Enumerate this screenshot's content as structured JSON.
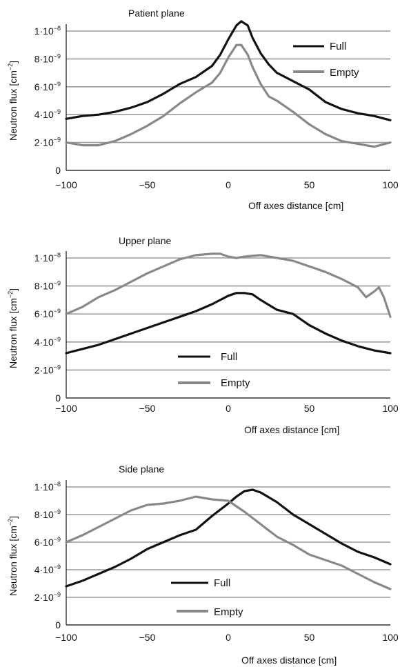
{
  "charts": [
    {
      "type": "line",
      "title": "Patient plane",
      "xlabel": "Off axes distance [cm]",
      "ylabel": "Neutron flux [cm",
      "ylabel_exp": "−2",
      "ylabel_close": "]",
      "xlim": [
        -100,
        100
      ],
      "ylim": [
        0,
        1.05e-08
      ],
      "x_ticks": [
        "−100",
        "−50",
        "0",
        "50",
        "100"
      ],
      "y_ticks": [
        {
          "mant": "0",
          "exp": ""
        },
        {
          "mant": "2·10",
          "exp": "−9"
        },
        {
          "mant": "4·10",
          "exp": "−9"
        },
        {
          "mant": "6·10",
          "exp": "−9"
        },
        {
          "mant": "8·10",
          "exp": "−9"
        },
        {
          "mant": "1·10",
          "exp": "−8"
        }
      ],
      "grid": true,
      "legend_position": "top-right",
      "series": [
        {
          "name": "Full",
          "color": "#111111",
          "x": [
            -100,
            -90,
            -80,
            -70,
            -60,
            -50,
            -40,
            -30,
            -20,
            -10,
            -5,
            0,
            5,
            8,
            12,
            15,
            20,
            25,
            30,
            40,
            50,
            60,
            70,
            80,
            90,
            100
          ],
          "y": [
            3.7e-09,
            3.9e-09,
            4e-09,
            4.2e-09,
            4.5e-09,
            4.9e-09,
            5.5e-09,
            6.2e-09,
            6.7e-09,
            7.5e-09,
            8.3e-09,
            9.4e-09,
            1.04e-08,
            1.07e-08,
            1.04e-08,
            9.5e-09,
            8.4e-09,
            7.6e-09,
            7e-09,
            6.4e-09,
            5.8e-09,
            4.9e-09,
            4.4e-09,
            4.1e-09,
            3.9e-09,
            3.6e-09
          ]
        },
        {
          "name": "Empty",
          "color": "#888888",
          "x": [
            -100,
            -90,
            -80,
            -70,
            -60,
            -50,
            -40,
            -30,
            -20,
            -10,
            -5,
            0,
            5,
            8,
            12,
            15,
            20,
            25,
            30,
            40,
            50,
            60,
            70,
            80,
            90,
            100
          ],
          "y": [
            2e-09,
            1.8e-09,
            1.8e-09,
            2.1e-09,
            2.6e-09,
            3.2e-09,
            3.9e-09,
            4.8e-09,
            5.6e-09,
            6.3e-09,
            7e-09,
            8.1e-09,
            9e-09,
            9e-09,
            8.3e-09,
            7.4e-09,
            6.2e-09,
            5.3e-09,
            5e-09,
            4.2e-09,
            3.3e-09,
            2.6e-09,
            2.1e-09,
            1.9e-09,
            1.7e-09,
            2e-09
          ]
        }
      ]
    },
    {
      "type": "line",
      "title": "Upper plane",
      "xlabel": "Off axes distance [cm]",
      "ylabel": "Neutron flux [cm",
      "ylabel_exp": "−2",
      "ylabel_close": "]",
      "xlim": [
        -100,
        100
      ],
      "ylim": [
        0,
        1.05e-08
      ],
      "x_ticks": [
        "−100",
        "−50",
        "0",
        "50",
        "100"
      ],
      "y_ticks": [
        {
          "mant": "0",
          "exp": ""
        },
        {
          "mant": "2·10",
          "exp": "−9"
        },
        {
          "mant": "4·10",
          "exp": "−9"
        },
        {
          "mant": "6·10",
          "exp": "−9"
        },
        {
          "mant": "8·10",
          "exp": "−9"
        },
        {
          "mant": "1·10",
          "exp": "−8"
        }
      ],
      "grid": true,
      "legend_position": "bottom-center",
      "series": [
        {
          "name": "Full",
          "color": "#111111",
          "x": [
            -100,
            -90,
            -80,
            -70,
            -60,
            -50,
            -40,
            -30,
            -20,
            -10,
            0,
            5,
            10,
            15,
            20,
            30,
            40,
            50,
            60,
            70,
            80,
            90,
            100
          ],
          "y": [
            3.2e-09,
            3.5e-09,
            3.8e-09,
            4.2e-09,
            4.6e-09,
            5e-09,
            5.4e-09,
            5.8e-09,
            6.2e-09,
            6.7e-09,
            7.3e-09,
            7.5e-09,
            7.5e-09,
            7.4e-09,
            7e-09,
            6.3e-09,
            6e-09,
            5.2e-09,
            4.6e-09,
            4.1e-09,
            3.7e-09,
            3.4e-09,
            3.2e-09
          ]
        },
        {
          "name": "Empty",
          "color": "#888888",
          "x": [
            -100,
            -90,
            -80,
            -70,
            -60,
            -50,
            -40,
            -30,
            -20,
            -10,
            -5,
            0,
            5,
            10,
            20,
            30,
            40,
            50,
            60,
            70,
            80,
            85,
            90,
            93,
            96,
            100
          ],
          "y": [
            6e-09,
            6.5e-09,
            7.2e-09,
            7.7e-09,
            8.3e-09,
            8.9e-09,
            9.4e-09,
            9.9e-09,
            1.02e-08,
            1.03e-08,
            1.03e-08,
            1.01e-08,
            1e-08,
            1.01e-08,
            1.02e-08,
            1e-08,
            9.8e-09,
            9.4e-09,
            9e-09,
            8.5e-09,
            7.9e-09,
            7.2e-09,
            7.6e-09,
            7.9e-09,
            7.2e-09,
            5.8e-09
          ]
        }
      ]
    },
    {
      "type": "line",
      "title": "Side plane",
      "xlabel": "Off axes distance [cm]",
      "ylabel": "Neutron flux [cm",
      "ylabel_exp": "−2",
      "ylabel_close": "]",
      "xlim": [
        -100,
        100
      ],
      "ylim": [
        0,
        1.05e-08
      ],
      "x_ticks": [
        "−100",
        "−50",
        "0",
        "50",
        "100"
      ],
      "y_ticks": [
        {
          "mant": "0",
          "exp": ""
        },
        {
          "mant": "2·10",
          "exp": "−9"
        },
        {
          "mant": "4·10",
          "exp": "−9"
        },
        {
          "mant": "6·10",
          "exp": "−9"
        },
        {
          "mant": "8·10",
          "exp": "−9"
        },
        {
          "mant": "1·10",
          "exp": "−8"
        }
      ],
      "grid": true,
      "legend_position": "bottom-center",
      "series": [
        {
          "name": "Full",
          "color": "#111111",
          "x": [
            -100,
            -90,
            -80,
            -70,
            -60,
            -50,
            -40,
            -30,
            -20,
            -10,
            0,
            5,
            10,
            15,
            20,
            30,
            40,
            50,
            60,
            70,
            80,
            90,
            100
          ],
          "y": [
            2.8e-09,
            3.2e-09,
            3.7e-09,
            4.2e-09,
            4.8e-09,
            5.5e-09,
            6e-09,
            6.5e-09,
            6.9e-09,
            7.9e-09,
            8.8e-09,
            9.3e-09,
            9.7e-09,
            9.8e-09,
            9.6e-09,
            8.9e-09,
            8e-09,
            7.3e-09,
            6.6e-09,
            5.9e-09,
            5.3e-09,
            4.9e-09,
            4.4e-09
          ]
        },
        {
          "name": "Empty",
          "color": "#888888",
          "x": [
            -100,
            -90,
            -80,
            -70,
            -60,
            -50,
            -40,
            -30,
            -20,
            -10,
            0,
            10,
            20,
            30,
            40,
            50,
            60,
            70,
            80,
            90,
            100
          ],
          "y": [
            6e-09,
            6.5e-09,
            7.1e-09,
            7.7e-09,
            8.3e-09,
            8.7e-09,
            8.8e-09,
            9e-09,
            9.3e-09,
            9.1e-09,
            9e-09,
            8.2e-09,
            7.3e-09,
            6.4e-09,
            5.8e-09,
            5.1e-09,
            4.7e-09,
            4.3e-09,
            3.7e-09,
            3.1e-09,
            2.6e-09
          ]
        }
      ]
    }
  ]
}
